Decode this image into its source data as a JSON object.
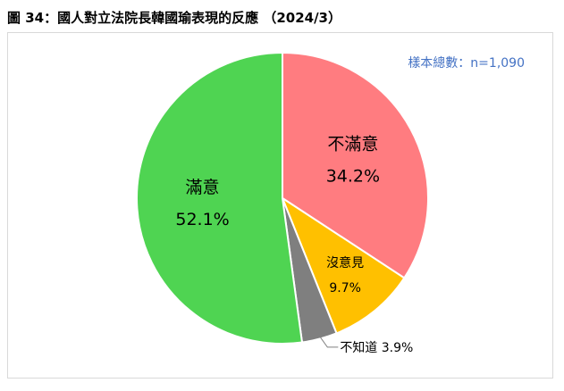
{
  "figure": {
    "title": "圖 34：國人對立法院長韓國瑜表現的反應 （2024/3）",
    "sample_note": "樣本總數：n=1,090"
  },
  "chart_data": {
    "type": "pie",
    "title": "圖 34：國人對立法院長韓國瑜表現的反應 （2024/3）",
    "categories": [
      "不滿意",
      "沒意見",
      "不知道",
      "滿意"
    ],
    "values": [
      34.2,
      9.7,
      3.9,
      52.1
    ],
    "value_labels": [
      "34.2%",
      "9.7%",
      "3.9%",
      "52.1%"
    ],
    "label_texts": [
      "不滿意",
      "沒意見",
      "不知道 3.9%",
      "滿意"
    ],
    "colors": [
      "#ff7c80",
      "#ffc000",
      "#7f7f7f",
      "#4fd452"
    ],
    "start_angle_deg": 0,
    "direction": "clockwise",
    "legend": "none",
    "annotations": [
      "樣本總數：n=1,090"
    ]
  }
}
